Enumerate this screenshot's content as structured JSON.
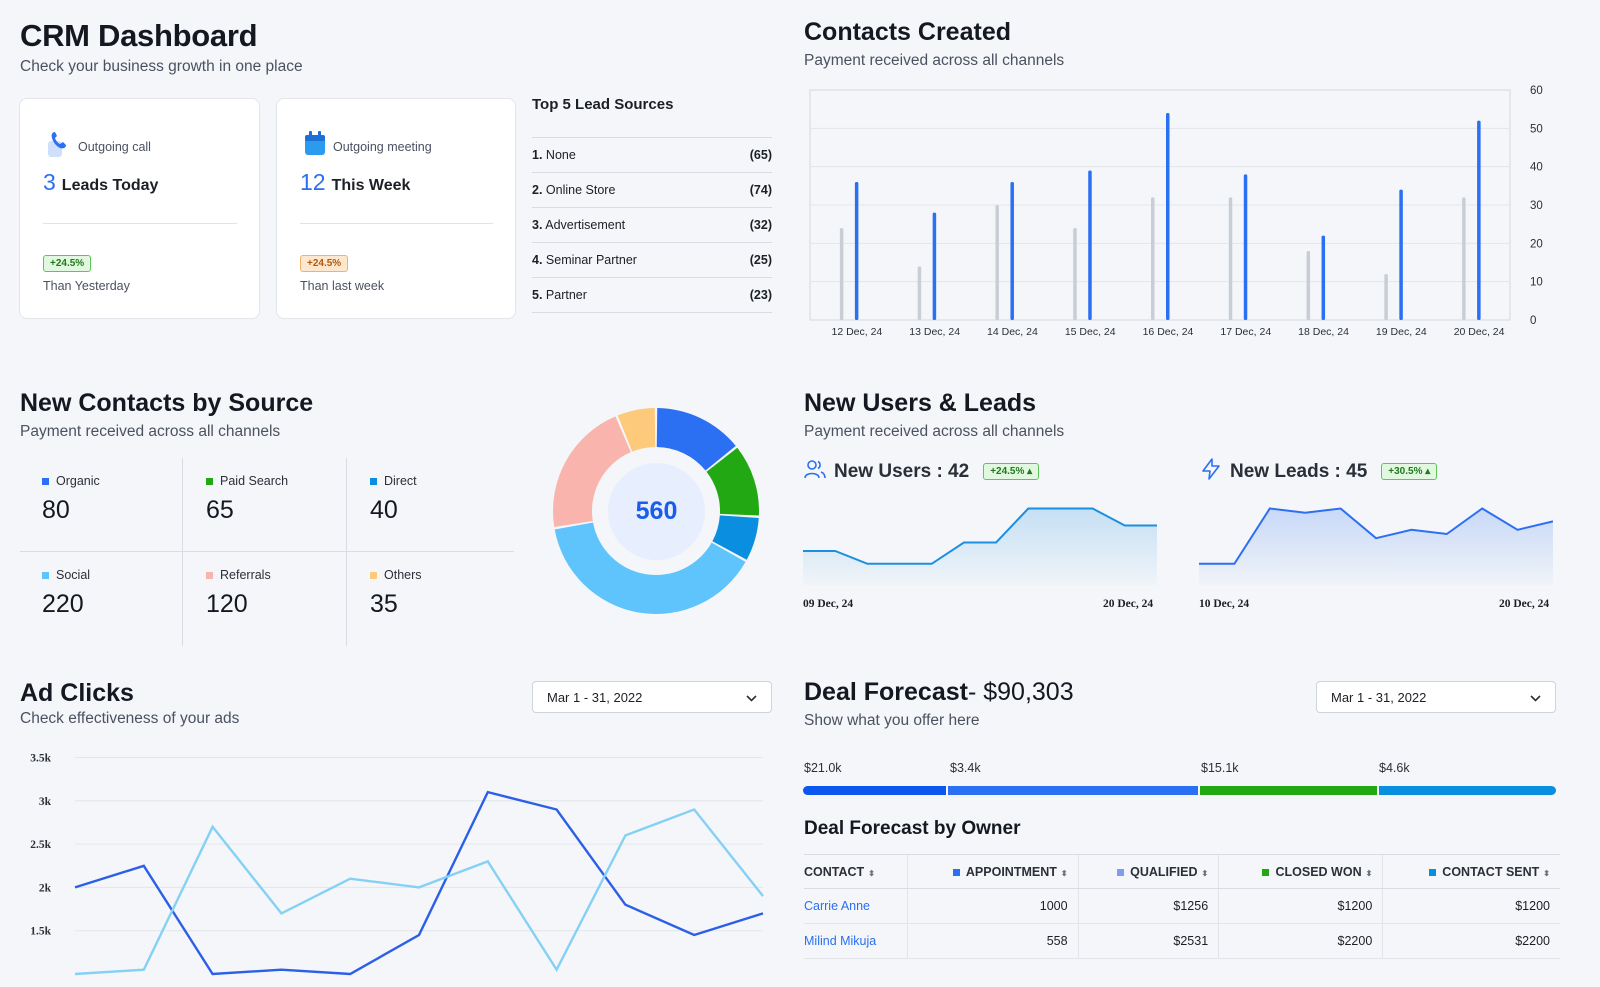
{
  "header": {
    "title": "CRM Dashboard",
    "subtitle": "Check your business growth in one place"
  },
  "kpis": [
    {
      "label": "Outgoing call",
      "icon": "phone-icon",
      "value": "3",
      "text": "Leads Today",
      "badge": "+24.5%",
      "note": "Than Yesterday"
    },
    {
      "label": "Outgoing meeting",
      "icon": "calendar-icon",
      "value": "12",
      "text": "This Week",
      "badge": "+24.5%",
      "note": "Than last week"
    }
  ],
  "lead_sources": {
    "title": "Top 5 Lead Sources",
    "items": [
      {
        "rank": "1.",
        "name": "None",
        "count": "(65)"
      },
      {
        "rank": "2.",
        "name": "Online Store",
        "count": "(74)"
      },
      {
        "rank": "3.",
        "name": "Advertisement",
        "count": "(32)"
      },
      {
        "rank": "4.",
        "name": "Seminar Partner",
        "count": "(25)"
      },
      {
        "rank": "5.",
        "name": "Partner",
        "count": "(23)"
      }
    ]
  },
  "contacts_created": {
    "title": "Contacts Created",
    "subtitle": "Payment received across all channels"
  },
  "new_contacts": {
    "title": "New Contacts by Source",
    "subtitle": "Payment received across all channels",
    "total": "560",
    "stats": [
      {
        "label": "Organic",
        "value": "80",
        "color": "#2b6ff2"
      },
      {
        "label": "Paid Search",
        "value": "65",
        "color": "#22a812"
      },
      {
        "label": "Direct",
        "value": "40",
        "color": "#0a8fe0"
      },
      {
        "label": "Social",
        "value": "220",
        "color": "#5ec4fb"
      },
      {
        "label": "Referrals",
        "value": "120",
        "color": "#f9b5ad"
      },
      {
        "label": "Others",
        "value": "35",
        "color": "#fdc97a"
      }
    ]
  },
  "users_leads": {
    "title": "New Users & Leads",
    "subtitle": "Payment received across all channels",
    "users": {
      "label": "New Users : 42",
      "badge": "+24.5%",
      "start": "09 Dec, 24",
      "end": "20 Dec, 24"
    },
    "leads": {
      "label": "New Leads : 45",
      "badge": "+30.5%",
      "start": "10 Dec, 24",
      "end": "20 Dec, 24"
    }
  },
  "ad_clicks": {
    "title": "Ad Clicks",
    "subtitle": "Check effectiveness of your ads",
    "date_range": "Mar 1 - 31, 2022"
  },
  "deal_forecast": {
    "title": "Deal Forecast",
    "amount": "- $90,303",
    "subtitle": "Show what you offer here",
    "date_range": "Mar 1 - 31, 2022",
    "segments": [
      {
        "label": "$21.0k",
        "color": "#0b57f0"
      },
      {
        "label": "$3.4k",
        "color": "#2b6ff2"
      },
      {
        "label": "$15.1k",
        "color": "#22a812"
      },
      {
        "label": "$4.6k",
        "color": "#0a8fe0"
      }
    ],
    "owner_title": "Deal Forecast by Owner",
    "columns": [
      "CONTACT",
      "APPOINTMENT",
      "QUALIFIED",
      "CLOSED WON",
      "CONTACT SENT"
    ],
    "column_colors": [
      "",
      "#2b6ff2",
      "#7f9cf5",
      "#22a812",
      "#0a8fe0"
    ],
    "rows": [
      [
        "Carrie Anne",
        "1000",
        "$1256",
        "$1200",
        "$1200"
      ],
      [
        "Milind Mikuja",
        "558",
        "$2531",
        "$2200",
        "$2200"
      ]
    ]
  },
  "chart_data": [
    {
      "type": "bar",
      "categories": [
        "12 Dec, 24",
        "13 Dec, 24",
        "14 Dec, 24",
        "15 Dec, 24",
        "16 Dec, 24",
        "17 Dec, 24",
        "18 Dec, 24",
        "19 Dec, 24",
        "20 Dec, 24"
      ],
      "series": [
        {
          "values": [
            24,
            14,
            30,
            24,
            32,
            32,
            18,
            12,
            32
          ],
          "color": "#c9ced6"
        },
        {
          "values": [
            36,
            28,
            36,
            39,
            54,
            38,
            22,
            34,
            52
          ],
          "color": "#2b6ff2"
        }
      ],
      "ylim": [
        0,
        60
      ],
      "yticks": [
        0,
        10,
        20,
        30,
        40,
        50,
        60
      ],
      "yaxis_side": "right"
    },
    {
      "type": "pie",
      "categories": [
        "Organic",
        "Paid Search",
        "Direct",
        "Social",
        "Referrals",
        "Others"
      ],
      "values": [
        80,
        65,
        40,
        220,
        120,
        35
      ],
      "colors": [
        "#2b6ff2",
        "#22a812",
        "#0a8fe0",
        "#5ec4fb",
        "#f9b5ad",
        "#fdc97a"
      ],
      "center_label": "560"
    },
    {
      "type": "area",
      "values": [
        33,
        33,
        30,
        30,
        30,
        35,
        35,
        43,
        43,
        43,
        39,
        39
      ],
      "color": "#1d8fe0"
    },
    {
      "type": "area",
      "values": [
        30,
        30,
        43,
        42,
        43,
        36,
        38,
        37,
        43,
        38,
        40
      ],
      "color": "#2b6ff2"
    },
    {
      "type": "line",
      "yticks": [
        "1.5k",
        "2k",
        "2.5k",
        "3k",
        "3.5k"
      ],
      "ylim": [
        1000,
        3500
      ],
      "series": [
        {
          "values": [
            2000,
            2250,
            1000,
            1050,
            1000,
            1450,
            3100,
            2900,
            1800,
            1450,
            1700
          ],
          "color": "#2b5fe8"
        },
        {
          "values": [
            1000,
            1050,
            2700,
            1700,
            2100,
            2000,
            2300,
            1050,
            2600,
            2900,
            1900
          ],
          "color": "#85d1f6"
        }
      ]
    }
  ]
}
